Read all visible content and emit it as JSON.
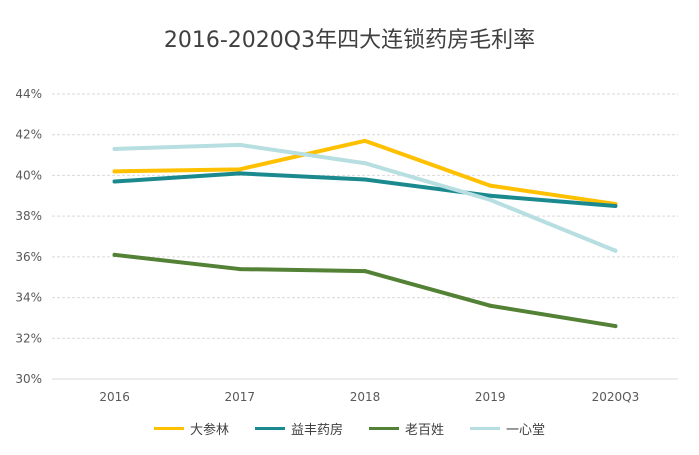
{
  "chart_data": {
    "type": "line",
    "title": "2016-2020Q3年四大连锁药房毛利率",
    "categories": [
      "2016",
      "2017",
      "2018",
      "2019",
      "2020Q3"
    ],
    "ylim": [
      30,
      44
    ],
    "yticks": [
      30,
      32,
      34,
      36,
      38,
      40,
      42,
      44
    ],
    "ytick_labels": [
      "30%",
      "32%",
      "34%",
      "36%",
      "38%",
      "40%",
      "42%",
      "44%"
    ],
    "grid": true,
    "legend_position": "bottom",
    "series": [
      {
        "name": "大参林",
        "color": "#FFC000",
        "values": [
          40.2,
          40.3,
          41.7,
          39.5,
          38.6
        ]
      },
      {
        "name": "益丰药房",
        "color": "#1B8A8F",
        "values": [
          39.7,
          40.1,
          39.8,
          39.0,
          38.5
        ]
      },
      {
        "name": "老百姓",
        "color": "#538135",
        "values": [
          36.1,
          35.4,
          35.3,
          33.6,
          32.6
        ]
      },
      {
        "name": "一心堂",
        "color": "#B7DEE0",
        "values": [
          41.3,
          41.5,
          40.6,
          38.8,
          36.3
        ]
      }
    ]
  }
}
